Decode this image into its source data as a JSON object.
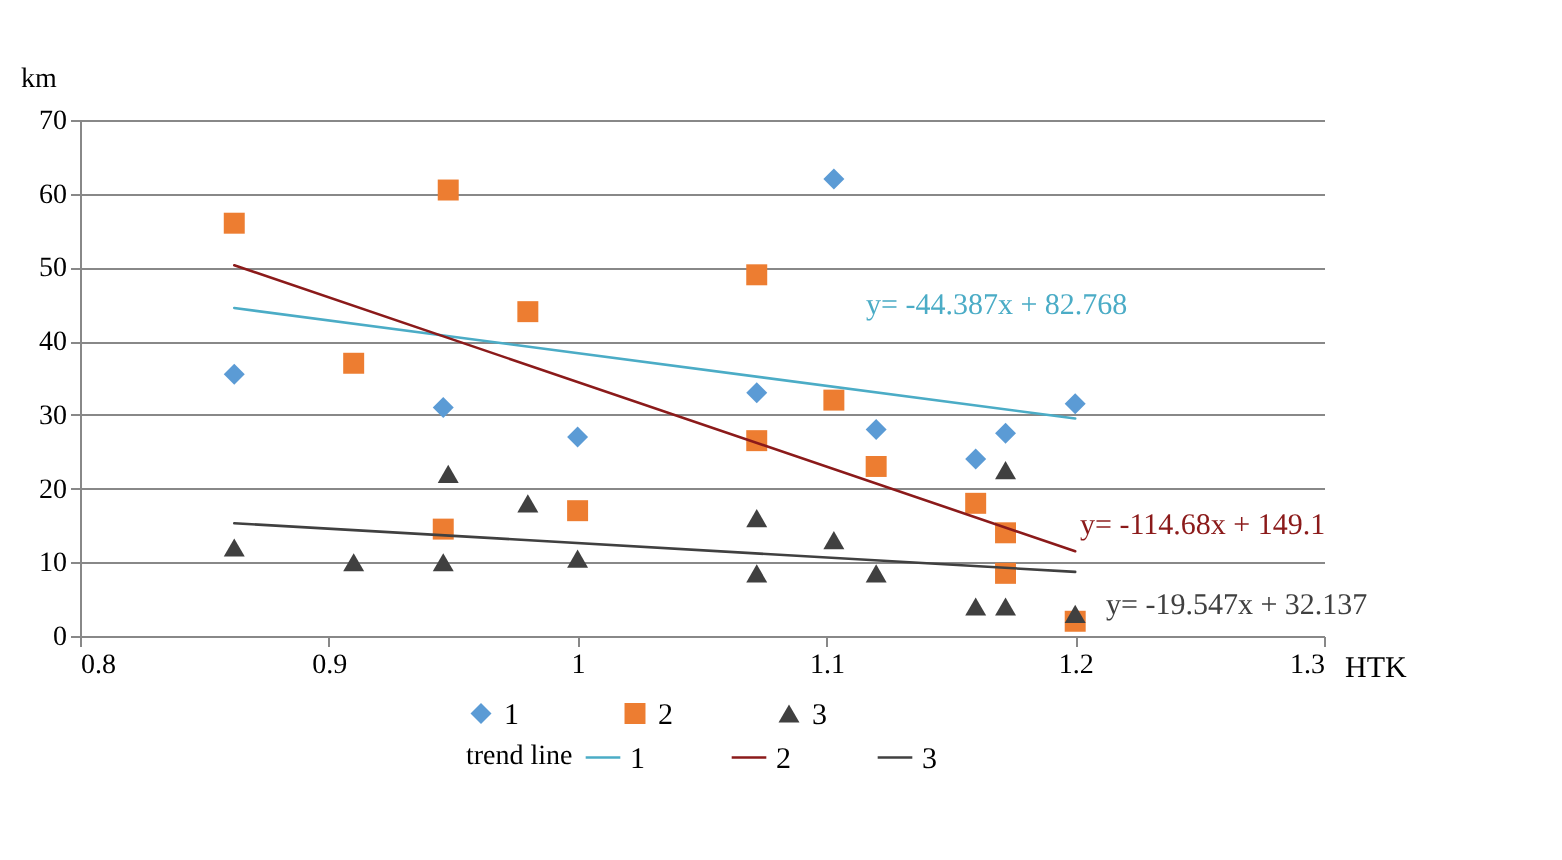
{
  "chart_data": {
    "type": "scatter",
    "xlabel": "HTK",
    "ylabel": "km",
    "legend_title": "trend line",
    "xlim": [
      0.8,
      1.3
    ],
    "xticks": [
      0.8,
      0.9,
      1,
      1.1,
      1.2,
      1.3
    ],
    "ylim": [
      0,
      70
    ],
    "yticks": [
      0,
      10,
      20,
      30,
      40,
      50,
      60,
      70
    ],
    "grid": "y",
    "legend": "bottom",
    "series": [
      {
        "name": "1",
        "marker": "diamond",
        "color": "#5b9bd5",
        "x": [
          0.862,
          0.946,
          1.0,
          1.072,
          1.103,
          1.12,
          1.16,
          1.172,
          1.2
        ],
        "values": [
          35.5,
          31,
          27,
          33,
          62,
          28,
          24,
          27.5,
          31.5
        ]
      },
      {
        "name": "2",
        "marker": "square",
        "color": "#ed7d31",
        "x": [
          0.862,
          0.91,
          0.946,
          0.948,
          0.98,
          1.0,
          1.072,
          1.072,
          1.103,
          1.12,
          1.16,
          1.172,
          1.172,
          1.2
        ],
        "values": [
          56,
          37,
          14.5,
          60.5,
          44,
          17,
          49,
          26.5,
          32,
          23,
          18,
          14,
          8.5,
          2
        ]
      },
      {
        "name": "3",
        "marker": "triangle",
        "color": "#404040",
        "x": [
          0.862,
          0.91,
          0.946,
          0.948,
          0.98,
          1.0,
          1.072,
          1.072,
          1.103,
          1.12,
          1.16,
          1.172,
          1.172,
          1.2
        ],
        "values": [
          12,
          10,
          10,
          22,
          18,
          10.5,
          16,
          8.5,
          13,
          8.5,
          4,
          4,
          22.5,
          3
        ]
      },
      {
        "name": "1",
        "type": "line",
        "color": "#4bacc6",
        "x": [
          0.862,
          1.2
        ],
        "values": [
          44.5,
          29.5
        ]
      },
      {
        "name": "2",
        "type": "line",
        "color": "#8b1a1a",
        "x": [
          0.862,
          1.2
        ],
        "values": [
          50.3,
          11.5
        ]
      },
      {
        "name": "3",
        "type": "line",
        "color": "#404040",
        "x": [
          0.862,
          1.2
        ],
        "values": [
          15.3,
          8.7
        ]
      }
    ],
    "annotations": [
      "y= -44.387x + 82.768",
      "y= -114.68x + 149.1",
      "y= -19.547x + 32.137"
    ]
  }
}
